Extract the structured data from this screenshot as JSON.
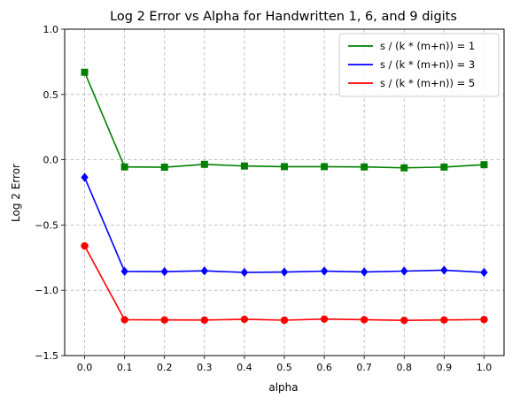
{
  "chart_data": {
    "type": "line",
    "title": "Log 2 Error vs Alpha for Handwritten 1, 6, and 9 digits",
    "xlabel": "alpha",
    "ylabel": "Log 2 Error",
    "x": [
      0.0,
      0.1,
      0.2,
      0.3,
      0.4,
      0.5,
      0.6,
      0.7,
      0.8,
      0.9,
      1.0
    ],
    "xticks": [
      "0.0",
      "0.1",
      "0.2",
      "0.3",
      "0.4",
      "0.5",
      "0.6",
      "0.7",
      "0.8",
      "0.9",
      "1.0"
    ],
    "yticks": [
      "1.0",
      "0.5",
      "0.0",
      "−0.5",
      "−1.0",
      "−1.5"
    ],
    "ytick_values": [
      1.0,
      0.5,
      0.0,
      -0.5,
      -1.0,
      -1.5
    ],
    "xlim": [
      -0.05,
      1.05
    ],
    "ylim": [
      -1.5,
      1.0
    ],
    "grid": true,
    "grid_style": "dashed",
    "legend_position": "top-right",
    "series": [
      {
        "name": "s / (k * (m+n)) = 1",
        "color": "#008000",
        "marker": "square",
        "values": [
          0.67,
          -0.055,
          -0.057,
          -0.035,
          -0.048,
          -0.053,
          -0.053,
          -0.055,
          -0.062,
          -0.056,
          -0.038
        ]
      },
      {
        "name": "s / (k * (m+n)) = 3",
        "color": "#0000ff",
        "marker": "diamond",
        "values": [
          -0.135,
          -0.855,
          -0.857,
          -0.851,
          -0.863,
          -0.86,
          -0.853,
          -0.859,
          -0.853,
          -0.846,
          -0.863
        ]
      },
      {
        "name": "s / (k * (m+n)) = 5",
        "color": "#ff0000",
        "marker": "circle",
        "values": [
          -0.66,
          -1.225,
          -1.227,
          -1.228,
          -1.222,
          -1.229,
          -1.22,
          -1.225,
          -1.23,
          -1.227,
          -1.224
        ]
      }
    ]
  }
}
